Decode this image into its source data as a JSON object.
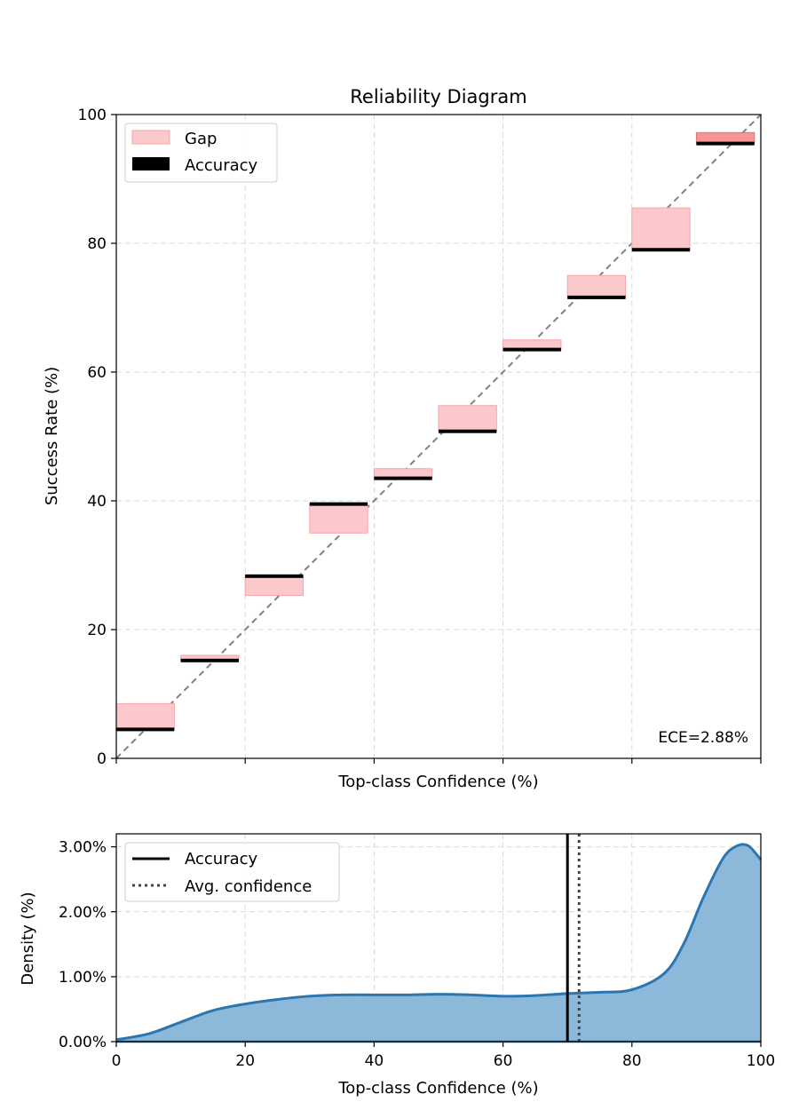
{
  "chart_data": [
    {
      "type": "bar",
      "title": "Reliability Diagram",
      "xlabel": "Top-class Confidence (%)",
      "ylabel": "Success Rate (%)",
      "xlim": [
        0,
        100
      ],
      "ylim": [
        0,
        100
      ],
      "yticks": [
        "0",
        "20",
        "40",
        "60",
        "80",
        "100"
      ],
      "grid": true,
      "legend": {
        "placement": "top-left",
        "entries": [
          "Gap",
          "Accuracy"
        ]
      },
      "annotation": "ECE=2.88%",
      "bins": [
        {
          "x0": 0,
          "x1": 9,
          "accuracy": 4.5,
          "confidence": 8.5
        },
        {
          "x0": 10,
          "x1": 19,
          "accuracy": 15.2,
          "confidence": 16.0
        },
        {
          "x0": 20,
          "x1": 29,
          "accuracy": 28.3,
          "confidence": 25.3
        },
        {
          "x0": 30,
          "x1": 39,
          "accuracy": 39.5,
          "confidence": 35.0
        },
        {
          "x0": 40,
          "x1": 49,
          "accuracy": 43.5,
          "confidence": 45.0
        },
        {
          "x0": 50,
          "x1": 59,
          "accuracy": 50.8,
          "confidence": 54.8
        },
        {
          "x0": 60,
          "x1": 69,
          "accuracy": 63.5,
          "confidence": 65.0
        },
        {
          "x0": 70,
          "x1": 79,
          "accuracy": 71.6,
          "confidence": 75.0
        },
        {
          "x0": 80,
          "x1": 89,
          "accuracy": 79.0,
          "confidence": 85.5
        },
        {
          "x0": 90,
          "x1": 99,
          "accuracy": 95.5,
          "confidence": 97.2
        }
      ],
      "colors": {
        "gap": "#fbc9cb",
        "gap_edge": "#f4a6aa",
        "last_gap": "#f69496",
        "accuracy": "#000000",
        "diagonal": "#808080"
      }
    },
    {
      "type": "area",
      "xlabel": "Top-class Confidence (%)",
      "ylabel": "Density (%)",
      "xlim": [
        0,
        100
      ],
      "ylim": [
        0,
        3.2
      ],
      "xticks": [
        "0",
        "20",
        "40",
        "60",
        "80",
        "100"
      ],
      "yticks": [
        "0.00%",
        "1.00%",
        "2.00%",
        "3.00%"
      ],
      "grid": true,
      "legend": {
        "placement": "top-left",
        "entries": [
          "Accuracy",
          "Avg. confidence"
        ]
      },
      "accuracy_line": 70.0,
      "avg_confidence_line": 71.8,
      "density": {
        "x": [
          0,
          5,
          10,
          15,
          20,
          25,
          30,
          35,
          40,
          45,
          50,
          55,
          60,
          65,
          70,
          75,
          80,
          85,
          88,
          91,
          94,
          96,
          98,
          100
        ],
        "y": [
          0.03,
          0.12,
          0.3,
          0.48,
          0.58,
          0.65,
          0.7,
          0.72,
          0.72,
          0.72,
          0.73,
          0.72,
          0.7,
          0.71,
          0.74,
          0.76,
          0.8,
          1.05,
          1.5,
          2.2,
          2.8,
          3.0,
          3.02,
          2.8
        ]
      },
      "colors": {
        "fill": "#8cb8d9",
        "line": "#2b76b0",
        "accuracy": "#000000",
        "avg_confidence": "#444444"
      }
    }
  ]
}
